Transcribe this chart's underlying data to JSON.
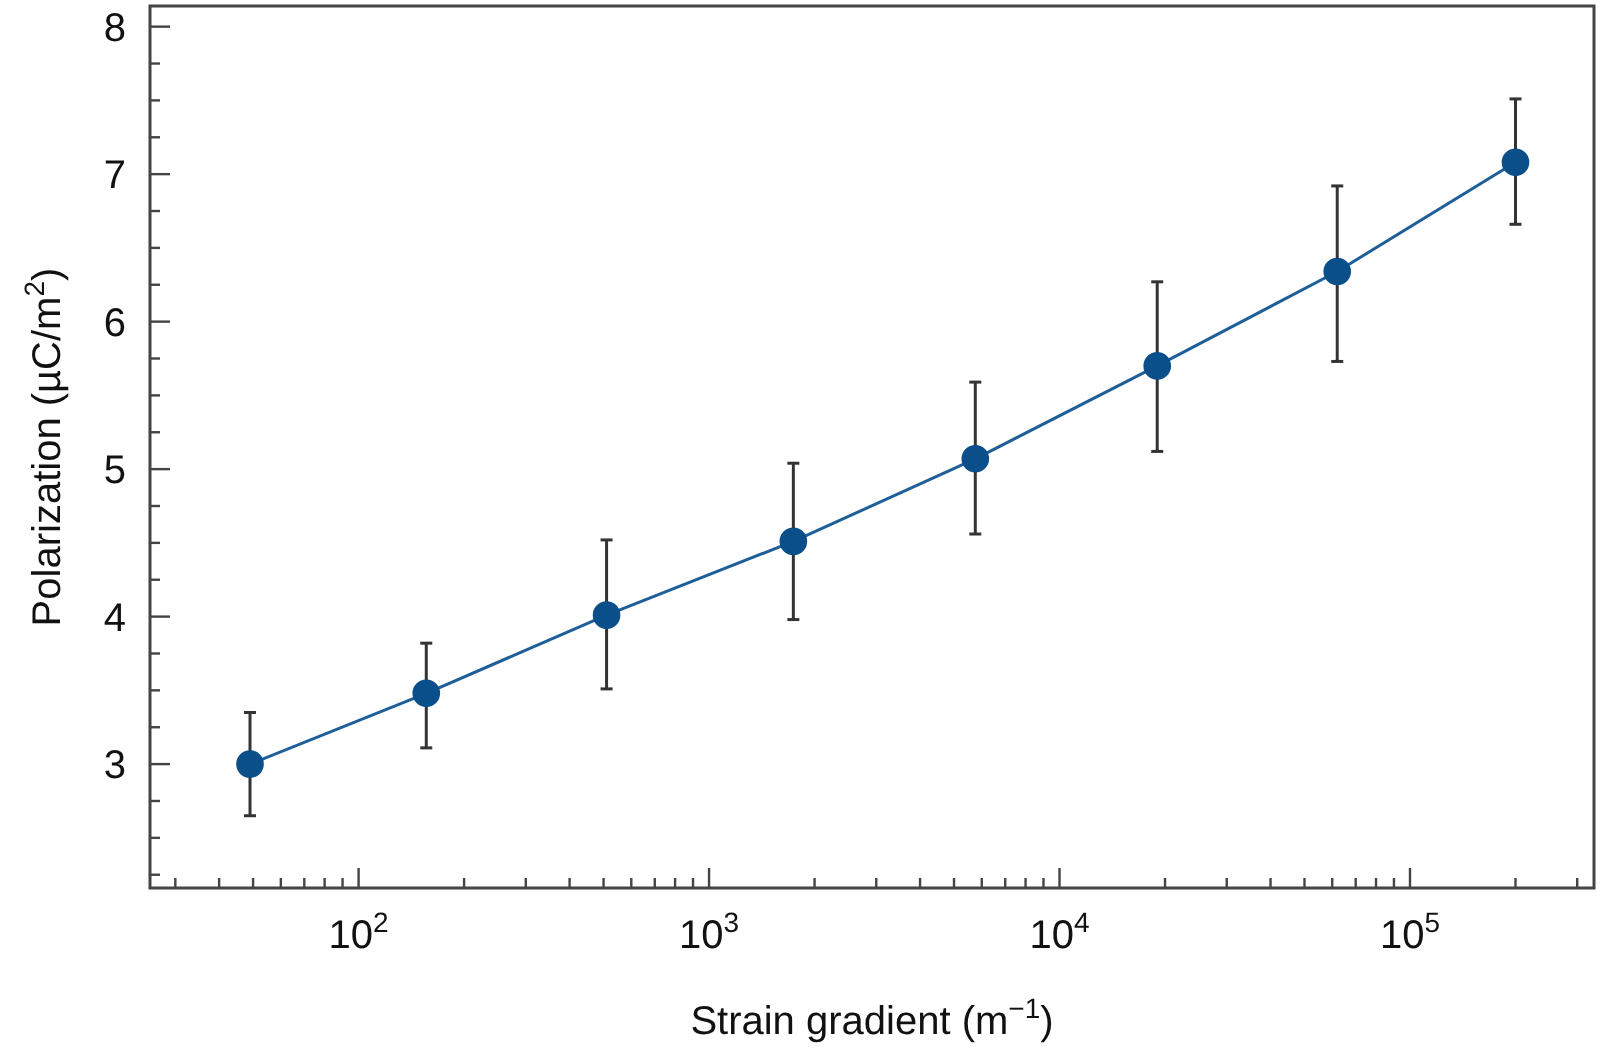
{
  "chart_data": {
    "type": "line",
    "xlabel": "Strain gradient (m$^{−1}$)",
    "ylabel": "Polarization (µC/m$^{2}$)",
    "log": "x",
    "marker": "circle",
    "line_style": "solid",
    "grid": false,
    "x": [
      49,
      156,
      510,
      1740,
      5750,
      19000,
      62000,
      200000
    ],
    "series": [
      {
        "color": "#1f5f99",
        "values": [
          3.0,
          3.48,
          4.01,
          4.51,
          5.07,
          5.7,
          6.34,
          7.08
        ],
        "errors": [
          [
            2.65,
            3.35
          ],
          [
            3.11,
            3.82
          ],
          [
            3.51,
            4.52
          ],
          [
            3.98,
            5.04
          ],
          [
            4.56,
            5.59
          ],
          [
            5.12,
            6.27
          ],
          [
            5.73,
            6.92
          ],
          [
            6.66,
            7.51
          ]
        ]
      }
    ],
    "xlim": [
      25.4,
      335000
    ],
    "xticks": [
      {
        "value": 30,
        "label": null
      },
      {
        "value": 40,
        "label": null
      },
      {
        "value": 50,
        "label": null
      },
      {
        "value": 60,
        "label": null
      },
      {
        "value": 70,
        "label": null
      },
      {
        "value": 80,
        "label": null
      },
      {
        "value": 90,
        "label": null
      },
      {
        "value": 100,
        "label": "10$^{2}$"
      },
      {
        "value": 200,
        "label": null
      },
      {
        "value": 300,
        "label": null
      },
      {
        "value": 400,
        "label": null
      },
      {
        "value": 500,
        "label": null
      },
      {
        "value": 600,
        "label": null
      },
      {
        "value": 700,
        "label": null
      },
      {
        "value": 800,
        "label": null
      },
      {
        "value": 900,
        "label": null
      },
      {
        "value": 1000,
        "label": "10$^{3}$"
      },
      {
        "value": 2000,
        "label": null
      },
      {
        "value": 3000,
        "label": null
      },
      {
        "value": 4000,
        "label": null
      },
      {
        "value": 5000,
        "label": null
      },
      {
        "value": 6000,
        "label": null
      },
      {
        "value": 7000,
        "label": null
      },
      {
        "value": 8000,
        "label": null
      },
      {
        "value": 9000,
        "label": null
      },
      {
        "value": 10000,
        "label": "10$^{4}$"
      },
      {
        "value": 20000,
        "label": null
      },
      {
        "value": 30000,
        "label": null
      },
      {
        "value": 40000,
        "label": null
      },
      {
        "value": 50000,
        "label": null
      },
      {
        "value": 60000,
        "label": null
      },
      {
        "value": 70000,
        "label": null
      },
      {
        "value": 80000,
        "label": null
      },
      {
        "value": 90000,
        "label": null
      },
      {
        "value": 100000,
        "label": "10$^{5}$"
      },
      {
        "value": 200000,
        "label": null
      },
      {
        "value": 300000,
        "label": null
      }
    ],
    "ylim": [
      2.16,
      8.14
    ],
    "yticks": [
      {
        "value": 2.25,
        "label": null
      },
      {
        "value": 2.5,
        "label": null
      },
      {
        "value": 2.75,
        "label": null
      },
      3,
      {
        "value": 3.25,
        "label": null
      },
      {
        "value": 3.5,
        "label": null
      },
      {
        "value": 3.75,
        "label": null
      },
      4,
      {
        "value": 4.25,
        "label": null
      },
      {
        "value": 4.5,
        "label": null
      },
      {
        "value": 4.75,
        "label": null
      },
      5,
      {
        "value": 5.25,
        "label": null
      },
      {
        "value": 5.5,
        "label": null
      },
      {
        "value": 5.75,
        "label": null
      },
      6,
      {
        "value": 6.25,
        "label": null
      },
      {
        "value": 6.5,
        "label": null
      },
      {
        "value": 6.75,
        "label": null
      },
      7,
      {
        "value": 7.25,
        "label": null
      },
      {
        "value": 7.5,
        "label": null
      },
      {
        "value": 7.75,
        "label": null
      },
      8
    ]
  }
}
